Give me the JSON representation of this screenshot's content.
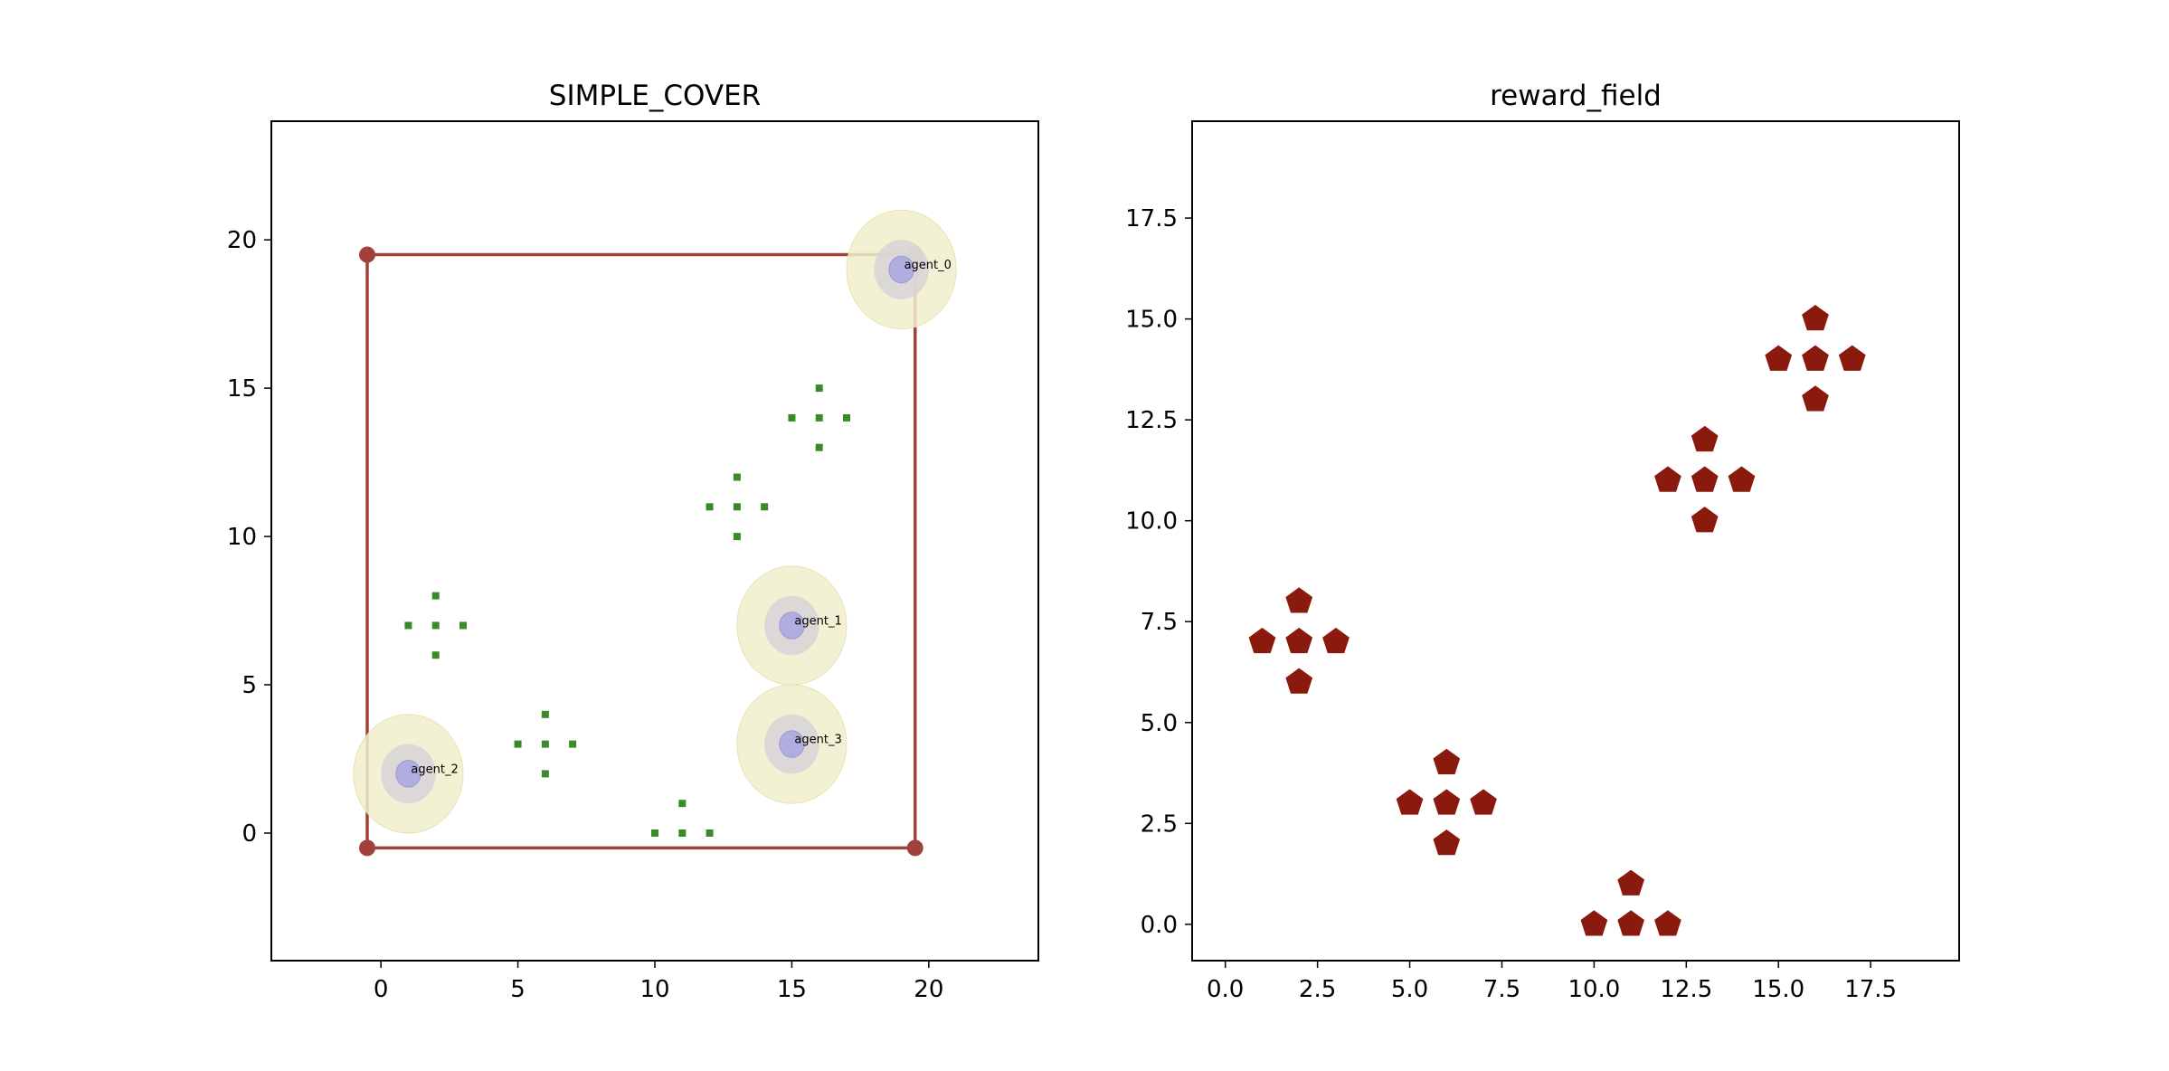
{
  "chart_data": [
    {
      "type": "scatter",
      "title": "SIMPLE_COVER",
      "xlabel": "",
      "ylabel": "",
      "xlim": [
        -4,
        24
      ],
      "ylim": [
        -4.3,
        24
      ],
      "xticks": [
        0,
        5,
        10,
        15,
        20
      ],
      "yticks": [
        0,
        5,
        10,
        15,
        20
      ],
      "tick_labels_x": [
        "0",
        "5",
        "10",
        "15",
        "20"
      ],
      "tick_labels_y": [
        "0",
        "5",
        "10",
        "15",
        "20"
      ],
      "grid": false,
      "boundary": {
        "corners": [
          [
            -0.5,
            -0.5
          ],
          [
            19.5,
            -0.5
          ],
          [
            19.5,
            19.5
          ],
          [
            -0.5,
            19.5
          ]
        ],
        "color": "#a0413c"
      },
      "reward_points": {
        "color": "#3a8a2a",
        "points": [
          [
            16,
            15
          ],
          [
            15,
            14
          ],
          [
            16,
            14
          ],
          [
            17,
            14
          ],
          [
            16,
            13
          ],
          [
            13,
            12
          ],
          [
            12,
            11
          ],
          [
            13,
            11
          ],
          [
            14,
            11
          ],
          [
            13,
            10
          ],
          [
            2,
            8
          ],
          [
            1,
            7
          ],
          [
            2,
            7
          ],
          [
            3,
            7
          ],
          [
            2,
            6
          ],
          [
            6,
            4
          ],
          [
            5,
            3
          ],
          [
            6,
            3
          ],
          [
            7,
            3
          ],
          [
            6,
            2
          ],
          [
            11,
            1
          ],
          [
            10,
            0
          ],
          [
            11,
            0
          ],
          [
            12,
            0
          ]
        ]
      },
      "agents": [
        {
          "name": "agent_0",
          "x": 19,
          "y": 19
        },
        {
          "name": "agent_1",
          "x": 15,
          "y": 7
        },
        {
          "name": "agent_2",
          "x": 1,
          "y": 2
        },
        {
          "name": "agent_3",
          "x": 15,
          "y": 3
        }
      ],
      "agent_colors": {
        "outer": "#f0efcc",
        "middle": "#d8d4d8",
        "inner": "#b0aee0"
      }
    },
    {
      "type": "scatter",
      "title": "reward_field",
      "xlabel": "",
      "ylabel": "",
      "xlim": [
        -0.9,
        19.9
      ],
      "ylim": [
        -0.9,
        19.9
      ],
      "xticks": [
        0,
        2.5,
        5,
        7.5,
        10,
        12.5,
        15,
        17.5
      ],
      "yticks": [
        0,
        2.5,
        5,
        7.5,
        10,
        12.5,
        15,
        17.5
      ],
      "tick_labels_x": [
        "0.0",
        "2.5",
        "5.0",
        "7.5",
        "10.0",
        "12.5",
        "15.0",
        "17.5"
      ],
      "tick_labels_y": [
        "0.0",
        "2.5",
        "5.0",
        "7.5",
        "10.0",
        "12.5",
        "15.0",
        "17.5"
      ],
      "grid": false,
      "marker": "pentagon",
      "color": "#8b1a0e",
      "points": [
        [
          16,
          15
        ],
        [
          15,
          14
        ],
        [
          16,
          14
        ],
        [
          17,
          14
        ],
        [
          16,
          13
        ],
        [
          13,
          12
        ],
        [
          12,
          11
        ],
        [
          13,
          11
        ],
        [
          14,
          11
        ],
        [
          13,
          10
        ],
        [
          2,
          8
        ],
        [
          1,
          7
        ],
        [
          2,
          7
        ],
        [
          3,
          7
        ],
        [
          2,
          6
        ],
        [
          6,
          4
        ],
        [
          5,
          3
        ],
        [
          6,
          3
        ],
        [
          7,
          3
        ],
        [
          6,
          2
        ],
        [
          11,
          1
        ],
        [
          10,
          0
        ],
        [
          11,
          0
        ],
        [
          12,
          0
        ]
      ]
    }
  ]
}
